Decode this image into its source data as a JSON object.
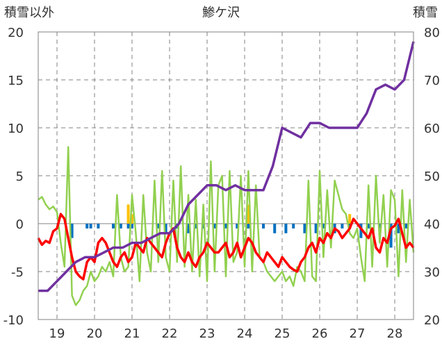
{
  "chart_data": {
    "type": "line",
    "title": "鯵ケ沢",
    "left_axis_label": "積雪以外",
    "right_axis_label": "積雪",
    "left_ylim": [
      -10,
      20
    ],
    "left_ticks": [
      "20",
      "15",
      "10",
      "5",
      "0",
      "-5",
      "-10"
    ],
    "right_ylim": [
      20,
      80
    ],
    "right_ticks": [
      "80",
      "70",
      "60",
      "50",
      "40",
      "30",
      "20"
    ],
    "xlim": [
      18.5,
      28.5
    ],
    "x_ticks": [
      "19",
      "20",
      "21",
      "22",
      "23",
      "24",
      "25",
      "26",
      "27",
      "28"
    ],
    "grid": true,
    "colors": {
      "temperature": "#ff0000",
      "wind": "#92d050",
      "snow_depth": "#7030a0",
      "precipitation": "#0070c0",
      "sunshine": "#ffc000",
      "gridline": "#808080"
    },
    "series": [
      {
        "key": "temperature",
        "axis": "left",
        "x": [
          18.5,
          18.6,
          18.7,
          18.8,
          18.9,
          19.0,
          19.1,
          19.2,
          19.3,
          19.4,
          19.5,
          19.6,
          19.7,
          19.8,
          19.9,
          20.0,
          20.1,
          20.2,
          20.3,
          20.4,
          20.5,
          20.6,
          20.7,
          20.8,
          20.9,
          21.0,
          21.1,
          21.2,
          21.3,
          21.4,
          21.5,
          21.6,
          21.7,
          21.8,
          21.9,
          22.0,
          22.1,
          22.2,
          22.3,
          22.4,
          22.5,
          22.6,
          22.7,
          22.8,
          22.9,
          23.0,
          23.1,
          23.2,
          23.3,
          23.4,
          23.5,
          23.6,
          23.7,
          23.8,
          23.9,
          24.0,
          24.1,
          24.2,
          24.3,
          24.4,
          24.5,
          24.6,
          24.7,
          24.8,
          24.9,
          25.0,
          25.1,
          25.2,
          25.3,
          25.4,
          25.5,
          25.6,
          25.7,
          25.8,
          25.9,
          26.0,
          26.1,
          26.2,
          26.3,
          26.4,
          26.5,
          26.6,
          26.7,
          26.8,
          26.9,
          27.0,
          27.1,
          27.2,
          27.3,
          27.4,
          27.5,
          27.6,
          27.7,
          27.8,
          27.9,
          28.0,
          28.1,
          28.2,
          28.3,
          28.4,
          28.5
        ],
        "values": [
          -1.5,
          -2.2,
          -1.8,
          -2.0,
          -0.8,
          -0.5,
          1.0,
          0.5,
          -1.5,
          -3.5,
          -5.0,
          -5.5,
          -5.8,
          -4.0,
          -3.5,
          -4.0,
          -2.0,
          -1.5,
          -2.0,
          -3.0,
          -4.0,
          -4.5,
          -3.5,
          -3.0,
          -4.0,
          -3.5,
          -2.0,
          -2.5,
          -3.0,
          -1.5,
          -2.0,
          -2.5,
          -3.0,
          -3.5,
          -2.0,
          -1.0,
          -0.5,
          -2.5,
          -3.5,
          -4.0,
          -3.0,
          -4.0,
          -4.5,
          -3.5,
          -3.0,
          -2.0,
          -2.5,
          -3.0,
          -3.0,
          -2.5,
          -2.0,
          -3.5,
          -3.0,
          -2.0,
          -3.5,
          -2.5,
          -1.5,
          -2.0,
          -3.0,
          -3.5,
          -4.0,
          -3.0,
          -3.5,
          -4.0,
          -4.5,
          -3.5,
          -4.0,
          -4.5,
          -4.8,
          -5.0,
          -4.0,
          -3.5,
          -2.5,
          -2.0,
          -3.0,
          -1.5,
          -2.0,
          -1.0,
          -1.5,
          -0.5,
          -0.8,
          -1.5,
          -1.0,
          -0.5,
          0.5,
          0.0,
          -0.5,
          -1.0,
          -1.5,
          -0.5,
          -2.5,
          -3.0,
          -1.5,
          -2.0,
          -0.5,
          -0.2,
          0.5,
          -1.0,
          -2.5,
          -2.0,
          -2.5
        ]
      },
      {
        "key": "wind",
        "axis": "left",
        "x": [
          18.5,
          18.6,
          18.7,
          18.8,
          18.9,
          19.0,
          19.1,
          19.2,
          19.3,
          19.4,
          19.5,
          19.6,
          19.7,
          19.8,
          19.9,
          20.0,
          20.1,
          20.2,
          20.3,
          20.4,
          20.5,
          20.6,
          20.7,
          20.8,
          20.9,
          21.0,
          21.1,
          21.2,
          21.3,
          21.4,
          21.5,
          21.6,
          21.7,
          21.8,
          21.9,
          22.0,
          22.1,
          22.2,
          22.3,
          22.4,
          22.5,
          22.6,
          22.7,
          22.8,
          22.9,
          23.0,
          23.1,
          23.2,
          23.3,
          23.4,
          23.5,
          23.6,
          23.7,
          23.8,
          23.9,
          24.0,
          24.1,
          24.2,
          24.3,
          24.4,
          24.5,
          24.6,
          24.7,
          24.8,
          24.9,
          25.0,
          25.1,
          25.2,
          25.3,
          25.4,
          25.5,
          25.6,
          25.7,
          25.8,
          25.9,
          26.0,
          26.1,
          26.2,
          26.3,
          26.4,
          26.5,
          26.6,
          26.7,
          26.8,
          26.9,
          27.0,
          27.1,
          27.2,
          27.3,
          27.4,
          27.5,
          27.6,
          27.7,
          27.8,
          27.9,
          28.0,
          28.1,
          28.2,
          28.3,
          28.4,
          28.5
        ],
        "values": [
          2.5,
          2.8,
          2.0,
          1.5,
          1.8,
          1.2,
          -2.0,
          -4.5,
          8.0,
          -7.5,
          -8.5,
          -8.0,
          -7.0,
          -6.5,
          -5.0,
          -6.0,
          -5.5,
          -4.5,
          -5.0,
          -4.0,
          -5.5,
          3.0,
          -3.5,
          -5.0,
          -4.5,
          3.0,
          -1.0,
          -6.0,
          3.0,
          -3.0,
          -5.0,
          4.5,
          -4.0,
          5.5,
          -3.5,
          -5.0,
          4.5,
          -4.0,
          6.0,
          -4.5,
          3.0,
          -5.0,
          2.5,
          -5.5,
          2.0,
          -6.0,
          6.5,
          -5.0,
          4.0,
          5.0,
          -5.5,
          5.5,
          -4.0,
          -3.0,
          5.0,
          -4.5,
          5.5,
          -5.0,
          4.0,
          -3.5,
          -4.0,
          -5.0,
          -5.5,
          -6.0,
          -5.5,
          -5.0,
          -6.0,
          -5.5,
          -6.5,
          -4.5,
          -5.0,
          -6.0,
          4.5,
          -5.5,
          -6.0,
          5.5,
          -3.5,
          3.5,
          -2.5,
          4.5,
          3.0,
          1.5,
          1.0,
          -1.0,
          -1.5,
          -0.5,
          -3.5,
          -6.0,
          4.0,
          -4.5,
          5.0,
          -2.0,
          3.0,
          -4.5,
          3.5,
          2.5,
          -5.5,
          3.5,
          -4.0,
          2.5,
          -3.0
        ]
      },
      {
        "key": "snow_depth",
        "axis": "right",
        "x": [
          18.5,
          18.75,
          19.0,
          19.25,
          19.5,
          19.75,
          20.0,
          20.25,
          20.5,
          20.75,
          21.0,
          21.25,
          21.5,
          21.75,
          22.0,
          22.25,
          22.5,
          22.75,
          23.0,
          23.25,
          23.5,
          23.75,
          24.0,
          24.25,
          24.5,
          24.75,
          25.0,
          25.25,
          25.5,
          25.75,
          26.0,
          26.25,
          26.5,
          26.75,
          27.0,
          27.25,
          27.5,
          27.75,
          28.0,
          28.25,
          28.5
        ],
        "values": [
          26,
          26,
          28,
          30,
          32,
          33,
          33,
          34,
          35,
          35,
          36,
          36,
          37,
          38,
          38,
          40,
          44,
          46,
          48,
          48,
          47,
          48,
          47,
          47,
          47,
          52,
          60,
          59,
          58,
          61,
          61,
          60,
          60,
          60,
          60,
          63,
          68,
          69,
          68,
          70,
          78
        ]
      },
      {
        "key": "precipitation",
        "axis": "left",
        "type": "bar",
        "x": [
          19.4,
          19.8,
          19.9,
          20.1,
          20.5,
          20.7,
          20.9,
          21.0,
          21.7,
          21.9,
          22.2,
          22.5,
          22.7,
          22.9,
          23.2,
          23.5,
          23.8,
          24.1,
          24.5,
          24.8,
          25.1,
          25.3,
          25.6,
          25.9,
          26.1,
          26.4,
          26.6,
          26.8,
          27.1,
          27.3,
          27.6,
          27.9,
          28.1,
          28.3
        ],
        "values": [
          -1.5,
          -0.5,
          -0.5,
          -0.5,
          -0.5,
          -0.5,
          -0.5,
          -0.5,
          -0.5,
          -1.0,
          -0.5,
          -1.0,
          -0.5,
          -0.5,
          -0.5,
          -0.5,
          -0.5,
          -0.5,
          -0.5,
          -1.0,
          -1.0,
          -0.5,
          -1.0,
          -1.0,
          -0.5,
          -1.0,
          -0.5,
          -0.5,
          -1.5,
          -0.5,
          -0.5,
          -2.5,
          -1.0,
          -0.5
        ]
      },
      {
        "key": "sunshine",
        "axis": "left",
        "type": "bar",
        "x": [
          20.9,
          21.0,
          24.1,
          26.8
        ],
        "values": [
          2.0,
          1.0,
          2.0,
          1.0
        ]
      }
    ]
  }
}
